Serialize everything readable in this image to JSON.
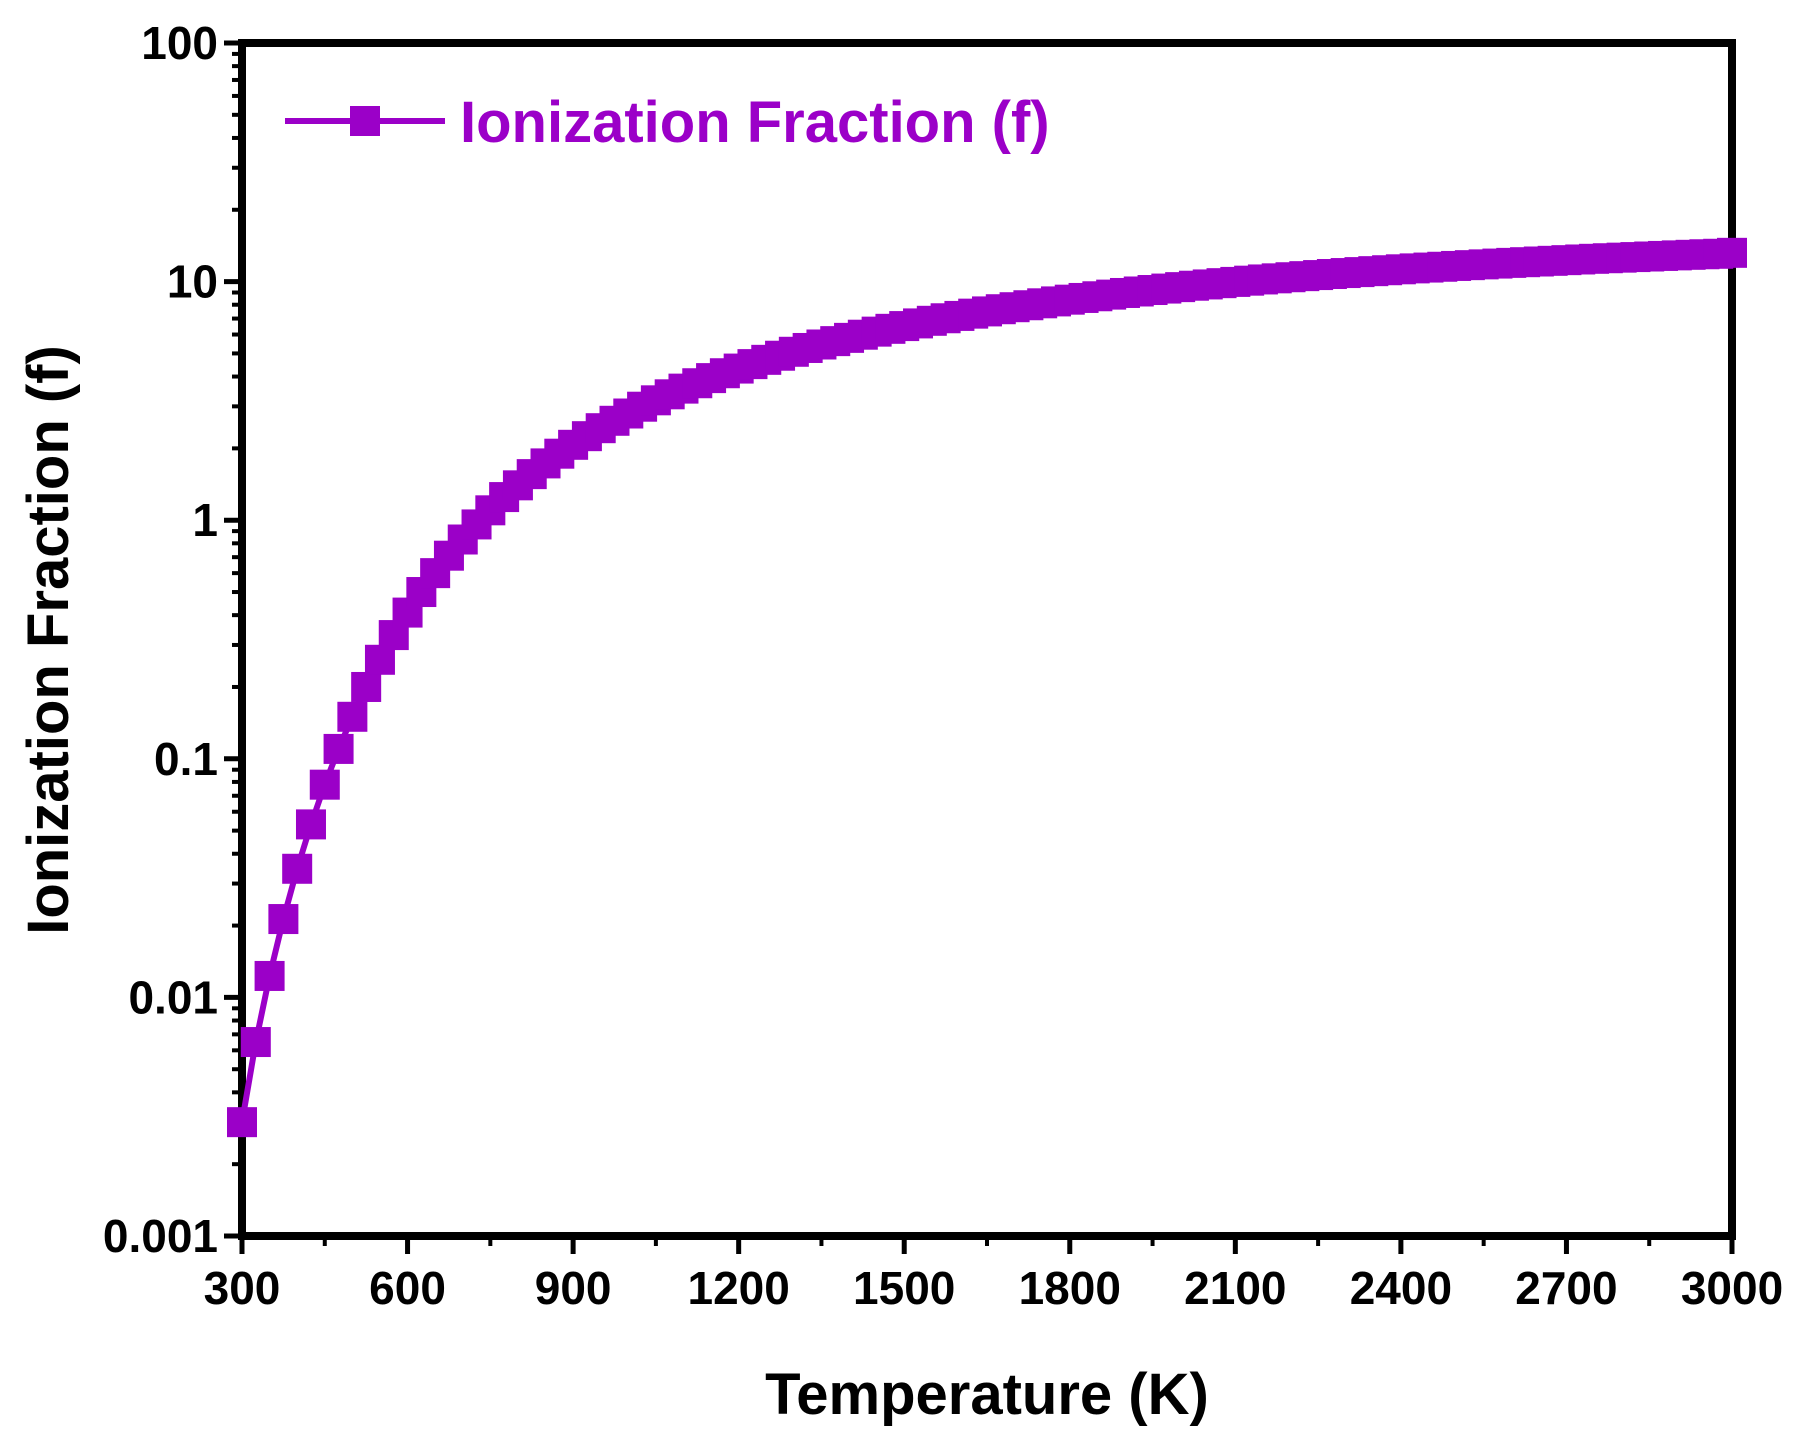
{
  "chart_data": {
    "type": "line",
    "title": "",
    "xlabel": "Temperature (K)",
    "ylabel": "Ionization Fraction (f)",
    "xlim": [
      300,
      3000
    ],
    "ylim": [
      0.001,
      100
    ],
    "yscale": "log",
    "x_ticks": [
      "300",
      "600",
      "900",
      "1200",
      "1500",
      "1800",
      "2100",
      "2400",
      "2700",
      "3000"
    ],
    "y_ticks": [
      "0.001",
      "0.01",
      "0.1",
      "1",
      "10",
      "100"
    ],
    "legend_position": "top-left",
    "series": [
      {
        "name": "Ionization Fraction (f)",
        "color": "#9b00c8",
        "marker": "square",
        "x": [
          300,
          325,
          350,
          375,
          400,
          425,
          450,
          475,
          500,
          525,
          550,
          575,
          600,
          625,
          650,
          675,
          700,
          725,
          750,
          775,
          800,
          825,
          850,
          875,
          900,
          925,
          950,
          975,
          1000,
          1025,
          1050,
          1075,
          1100,
          1125,
          1150,
          1175,
          1200,
          1225,
          1250,
          1275,
          1300,
          1325,
          1350,
          1375,
          1400,
          1425,
          1450,
          1475,
          1500,
          1525,
          1550,
          1575,
          1600,
          1625,
          1650,
          1675,
          1700,
          1725,
          1750,
          1775,
          1800,
          1825,
          1850,
          1875,
          1900,
          1925,
          1950,
          1975,
          2000,
          2025,
          2050,
          2075,
          2100,
          2125,
          2150,
          2175,
          2200,
          2225,
          2250,
          2275,
          2300,
          2325,
          2350,
          2375,
          2400,
          2425,
          2450,
          2475,
          2500,
          2525,
          2550,
          2575,
          2600,
          2625,
          2650,
          2675,
          2700,
          2725,
          2750,
          2775,
          2800,
          2825,
          2850,
          2875,
          2900,
          2925,
          2950,
          2975,
          3000
        ],
        "y": [
          0.003,
          0.0065,
          0.0123,
          0.0213,
          0.0346,
          0.0531,
          0.0779,
          0.11,
          0.15,
          0.2,
          0.26,
          0.33,
          0.41,
          0.5,
          0.6,
          0.71,
          0.83,
          0.96,
          1.1,
          1.25,
          1.4,
          1.56,
          1.73,
          1.9,
          2.07,
          2.25,
          2.43,
          2.61,
          2.8,
          2.99,
          3.18,
          3.37,
          3.56,
          3.75,
          3.94,
          4.13,
          4.32,
          4.51,
          4.7,
          4.89,
          5.08,
          5.27,
          5.45,
          5.63,
          5.81,
          5.99,
          6.17,
          6.34,
          6.51,
          6.68,
          6.85,
          7.02,
          7.18,
          7.34,
          7.5,
          7.66,
          7.81,
          7.96,
          8.11,
          8.26,
          8.4,
          8.54,
          8.68,
          8.82,
          8.96,
          9.09,
          9.22,
          9.35,
          9.48,
          9.61,
          9.73,
          9.85,
          9.97,
          10.09,
          10.21,
          10.32,
          10.43,
          10.54,
          10.65,
          10.76,
          10.86,
          10.96,
          11.06,
          11.16,
          11.26,
          11.36,
          11.45,
          11.54,
          11.63,
          11.72,
          11.81,
          11.9,
          11.98,
          12.06,
          12.14,
          12.22,
          12.3,
          12.38,
          12.46,
          12.53,
          12.6,
          12.67,
          12.74,
          12.81,
          12.88,
          12.95,
          13.02,
          13.08,
          13.2
        ]
      }
    ]
  }
}
